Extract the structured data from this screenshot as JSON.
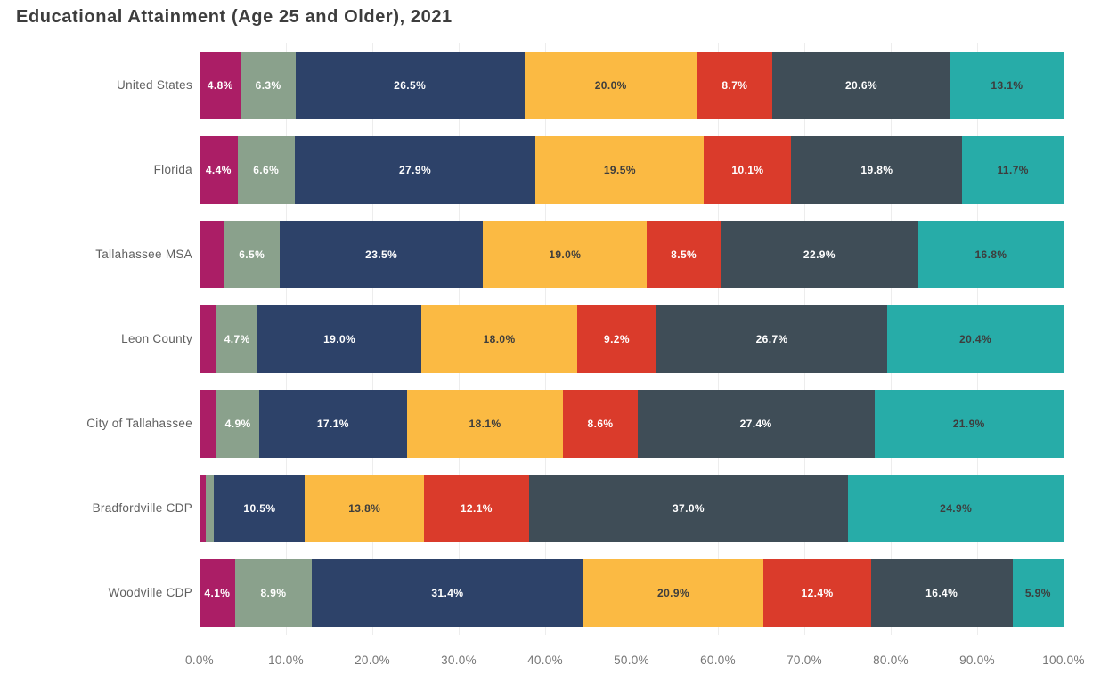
{
  "title": "Educational Attainment (Age 25 and Older), 2021",
  "chart_data": {
    "type": "bar",
    "orientation": "horizontal",
    "stacked": true,
    "title": "Educational Attainment (Age 25 and Older), 2021",
    "categories": [
      "United States",
      "Florida",
      "Tallahassee MSA",
      "Leon County",
      "City of Tallahassee",
      "Bradfordville CDP",
      "Woodville CDP"
    ],
    "series": [
      {
        "name": "segment-1-magenta",
        "color": "#AB1E66",
        "label_color": "#ffffff",
        "values": [
          4.8,
          4.4,
          2.8,
          2.0,
          2.0,
          0.7,
          4.1
        ],
        "labels": [
          "4.8%",
          "4.4%",
          "",
          "",
          "",
          "",
          "4.1%"
        ]
      },
      {
        "name": "segment-2-sage",
        "color": "#8AA18C",
        "label_color": "#ffffff",
        "values": [
          6.3,
          6.6,
          6.5,
          4.7,
          4.9,
          1.0,
          8.9
        ],
        "labels": [
          "6.3%",
          "6.6%",
          "6.5%",
          "4.7%",
          "4.9%",
          "",
          "8.9%"
        ]
      },
      {
        "name": "segment-3-navy",
        "color": "#2D4269",
        "label_color": "#ffffff",
        "values": [
          26.5,
          27.9,
          23.5,
          19.0,
          17.1,
          10.5,
          31.4
        ],
        "labels": [
          "26.5%",
          "27.9%",
          "23.5%",
          "19.0%",
          "17.1%",
          "10.5%",
          "31.4%"
        ]
      },
      {
        "name": "segment-4-amber",
        "color": "#FBBA43",
        "label_color": "#3d3d3d",
        "values": [
          20.0,
          19.5,
          19.0,
          18.0,
          18.1,
          13.8,
          20.9
        ],
        "labels": [
          "20.0%",
          "19.5%",
          "19.0%",
          "18.0%",
          "18.1%",
          "13.8%",
          "20.9%"
        ]
      },
      {
        "name": "segment-5-red",
        "color": "#DA3B2B",
        "label_color": "#ffffff",
        "values": [
          8.7,
          10.1,
          8.5,
          9.2,
          8.6,
          12.1,
          12.4
        ],
        "labels": [
          "8.7%",
          "10.1%",
          "8.5%",
          "9.2%",
          "8.6%",
          "12.1%",
          "12.4%"
        ]
      },
      {
        "name": "segment-6-charcoal",
        "color": "#3F4D57",
        "label_color": "#ffffff",
        "values": [
          20.6,
          19.8,
          22.9,
          26.7,
          27.4,
          37.0,
          16.4
        ],
        "labels": [
          "20.6%",
          "19.8%",
          "22.9%",
          "26.7%",
          "27.4%",
          "37.0%",
          "16.4%"
        ]
      },
      {
        "name": "segment-7-teal",
        "color": "#27ACA8",
        "label_color": "#3d3d3d",
        "values": [
          13.1,
          11.7,
          16.8,
          20.4,
          21.9,
          24.9,
          5.9
        ],
        "labels": [
          "13.1%",
          "11.7%",
          "16.8%",
          "20.4%",
          "21.9%",
          "24.9%",
          "5.9%"
        ]
      }
    ],
    "x_axis": {
      "min": 0,
      "max": 100,
      "tick_step": 10,
      "ticks": [
        "0.0%",
        "10.0%",
        "20.0%",
        "30.0%",
        "40.0%",
        "50.0%",
        "60.0%",
        "70.0%",
        "80.0%",
        "90.0%",
        "100.0%"
      ],
      "gridlines": true,
      "gridline_color": "#ededed"
    },
    "legend": "none"
  }
}
